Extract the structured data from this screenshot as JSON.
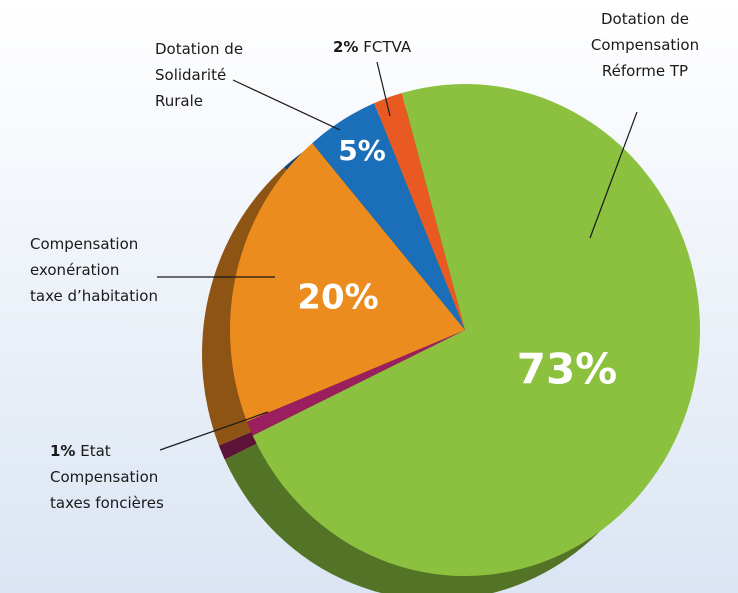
{
  "chart_data": {
    "type": "pie",
    "categories": [
      "Dotation de\nCompensation\nRéforme TP",
      "Etat\nCompensation\ntaxes foncières",
      "Compensation\nexonération\ntaxe d’habitation",
      "Dotation de\nSolidarité\nRurale",
      "FCTVA"
    ],
    "values": [
      73,
      1,
      20,
      5,
      2
    ],
    "value_labels": [
      "73%",
      "1%",
      "20%",
      "5%",
      "2%"
    ],
    "colors": [
      "#8bc13f",
      "#9b1f5e",
      "#ec8c1f",
      "#1b6fb8",
      "#e95a23"
    ]
  }
}
